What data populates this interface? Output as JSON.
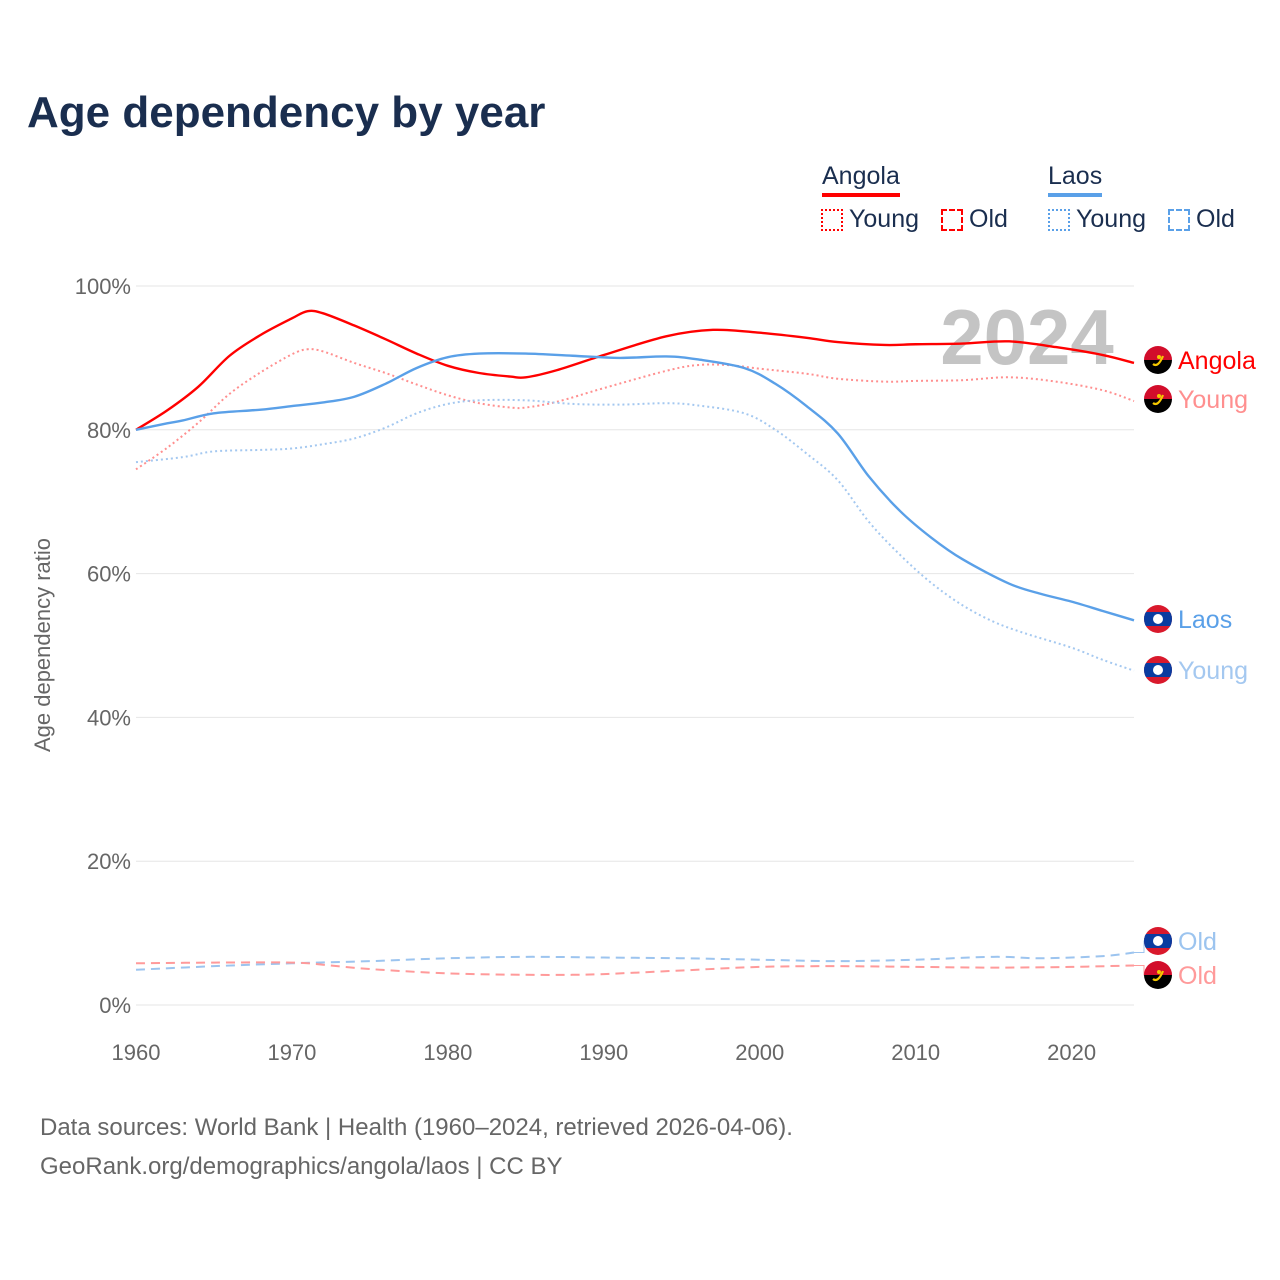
{
  "title": "Age dependency by year",
  "legend": {
    "countries": [
      {
        "name": "Angola",
        "color": "#ff0000",
        "young_color": "#ff0000",
        "old_color": "#ff0000"
      },
      {
        "name": "Laos",
        "color": "#5aa0e8",
        "young_color": "#5aa0e8",
        "old_color": "#5aa0e8"
      }
    ],
    "young_label": "Young",
    "old_label": "Old"
  },
  "source": {
    "line1": "Data sources: World Bank | Health (1960–2024, retrieved 2026-04-06).",
    "line2": "GeoRank.org/demographics/angola/laos | CC BY"
  },
  "chart_data": {
    "type": "line",
    "title": "Age dependency by year",
    "xlabel": "",
    "ylabel": "Age dependency ratio",
    "xlim": [
      1960,
      2024
    ],
    "ylim": [
      0,
      100
    ],
    "x_ticks": [
      "1960",
      "1970",
      "1980",
      "1990",
      "2000",
      "2010",
      "2020"
    ],
    "y_ticks": [
      "0%",
      "20%",
      "40%",
      "60%",
      "80%",
      "100%"
    ],
    "grid": true,
    "year_overlay": "2024",
    "series": [
      {
        "name": "Angola",
        "label": "Angola",
        "flag": "angola",
        "style": "solid",
        "color": "#ff0000",
        "points": [
          [
            1960,
            80.0
          ],
          [
            1962,
            82.7
          ],
          [
            1964,
            86.0
          ],
          [
            1966,
            90.3
          ],
          [
            1968,
            93.2
          ],
          [
            1970,
            95.5
          ],
          [
            1971,
            96.5
          ],
          [
            1972,
            96.2
          ],
          [
            1974,
            94.5
          ],
          [
            1976,
            92.6
          ],
          [
            1978,
            90.6
          ],
          [
            1980,
            88.9
          ],
          [
            1982,
            87.9
          ],
          [
            1984,
            87.4
          ],
          [
            1985,
            87.3
          ],
          [
            1987,
            88.3
          ],
          [
            1990,
            90.4
          ],
          [
            1994,
            93.0
          ],
          [
            1997,
            93.9
          ],
          [
            2000,
            93.5
          ],
          [
            2003,
            92.8
          ],
          [
            2005,
            92.2
          ],
          [
            2008,
            91.8
          ],
          [
            2010,
            91.9
          ],
          [
            2013,
            92.0
          ],
          [
            2016,
            92.3
          ],
          [
            2019,
            91.5
          ],
          [
            2022,
            90.4
          ],
          [
            2024,
            89.3
          ]
        ]
      },
      {
        "name": "Angola Young",
        "label": "Young",
        "flag": "angola",
        "style": "dotted",
        "color": "#ff8f8f",
        "points": [
          [
            1960,
            74.5
          ],
          [
            1962,
            77.5
          ],
          [
            1964,
            81.0
          ],
          [
            1966,
            85.0
          ],
          [
            1968,
            88.0
          ],
          [
            1970,
            90.5
          ],
          [
            1971,
            91.2
          ],
          [
            1972,
            90.9
          ],
          [
            1974,
            89.3
          ],
          [
            1976,
            87.9
          ],
          [
            1978,
            86.3
          ],
          [
            1980,
            84.8
          ],
          [
            1982,
            83.7
          ],
          [
            1984,
            83.1
          ],
          [
            1985,
            83.1
          ],
          [
            1987,
            83.9
          ],
          [
            1990,
            85.8
          ],
          [
            1994,
            88.2
          ],
          [
            1996,
            89.0
          ],
          [
            1998,
            89.0
          ],
          [
            2000,
            88.5
          ],
          [
            2003,
            87.8
          ],
          [
            2005,
            87.1
          ],
          [
            2008,
            86.7
          ],
          [
            2010,
            86.8
          ],
          [
            2013,
            86.9
          ],
          [
            2016,
            87.3
          ],
          [
            2019,
            86.7
          ],
          [
            2022,
            85.5
          ],
          [
            2024,
            84.0
          ]
        ]
      },
      {
        "name": "Laos",
        "label": "Laos",
        "flag": "laos",
        "style": "solid",
        "color": "#5aa0e8",
        "points": [
          [
            1960,
            80.0
          ],
          [
            1962,
            80.9
          ],
          [
            1963,
            81.3
          ],
          [
            1965,
            82.3
          ],
          [
            1968,
            82.8
          ],
          [
            1970,
            83.3
          ],
          [
            1972,
            83.8
          ],
          [
            1974,
            84.6
          ],
          [
            1976,
            86.4
          ],
          [
            1978,
            88.6
          ],
          [
            1980,
            90.1
          ],
          [
            1982,
            90.6
          ],
          [
            1985,
            90.6
          ],
          [
            1988,
            90.3
          ],
          [
            1991,
            90.0
          ],
          [
            1994,
            90.2
          ],
          [
            1996,
            89.8
          ],
          [
            1999,
            88.6
          ],
          [
            2001,
            86.4
          ],
          [
            2003,
            83.3
          ],
          [
            2005,
            79.5
          ],
          [
            2007,
            73.5
          ],
          [
            2009,
            68.7
          ],
          [
            2011,
            65.0
          ],
          [
            2013,
            62.0
          ],
          [
            2016,
            58.6
          ],
          [
            2018,
            57.2
          ],
          [
            2020,
            56.1
          ],
          [
            2022,
            54.8
          ],
          [
            2024,
            53.5
          ]
        ]
      },
      {
        "name": "Laos Young",
        "label": "Young",
        "flag": "laos",
        "style": "dotted",
        "color": "#a4c8f0",
        "points": [
          [
            1960,
            75.5
          ],
          [
            1963,
            76.2
          ],
          [
            1965,
            77.0
          ],
          [
            1968,
            77.2
          ],
          [
            1970,
            77.4
          ],
          [
            1972,
            78.0
          ],
          [
            1974,
            78.8
          ],
          [
            1976,
            80.3
          ],
          [
            1978,
            82.3
          ],
          [
            1980,
            83.6
          ],
          [
            1982,
            84.1
          ],
          [
            1985,
            84.1
          ],
          [
            1988,
            83.6
          ],
          [
            1991,
            83.5
          ],
          [
            1994,
            83.7
          ],
          [
            1996,
            83.4
          ],
          [
            1999,
            82.3
          ],
          [
            2001,
            80.0
          ],
          [
            2003,
            76.7
          ],
          [
            2005,
            73.0
          ],
          [
            2007,
            67.2
          ],
          [
            2009,
            62.6
          ],
          [
            2011,
            58.7
          ],
          [
            2013,
            55.6
          ],
          [
            2015,
            53.3
          ],
          [
            2017,
            51.7
          ],
          [
            2020,
            49.7
          ],
          [
            2022,
            48.0
          ],
          [
            2024,
            46.5
          ]
        ]
      },
      {
        "name": "Laos Old",
        "label": "Old",
        "flag": "laos",
        "style": "dashed",
        "color": "#9cc4ef",
        "points": [
          [
            1960,
            4.9
          ],
          [
            1965,
            5.4
          ],
          [
            1970,
            5.8
          ],
          [
            1975,
            6.1
          ],
          [
            1980,
            6.5
          ],
          [
            1985,
            6.7
          ],
          [
            1990,
            6.6
          ],
          [
            1995,
            6.5
          ],
          [
            2000,
            6.3
          ],
          [
            2005,
            6.1
          ],
          [
            2010,
            6.3
          ],
          [
            2015,
            6.7
          ],
          [
            2018,
            6.5
          ],
          [
            2022,
            6.8
          ],
          [
            2024,
            7.3
          ]
        ]
      },
      {
        "name": "Angola Old",
        "label": "Old",
        "flag": "angola",
        "style": "dashed",
        "color": "#ff9a9a",
        "points": [
          [
            1960,
            5.8
          ],
          [
            1965,
            5.9
          ],
          [
            1970,
            5.9
          ],
          [
            1972,
            5.6
          ],
          [
            1975,
            5.0
          ],
          [
            1980,
            4.4
          ],
          [
            1985,
            4.2
          ],
          [
            1988,
            4.2
          ],
          [
            1990,
            4.3
          ],
          [
            1995,
            4.8
          ],
          [
            2000,
            5.3
          ],
          [
            2005,
            5.4
          ],
          [
            2010,
            5.3
          ],
          [
            2015,
            5.2
          ],
          [
            2020,
            5.3
          ],
          [
            2024,
            5.5
          ]
        ]
      }
    ]
  }
}
